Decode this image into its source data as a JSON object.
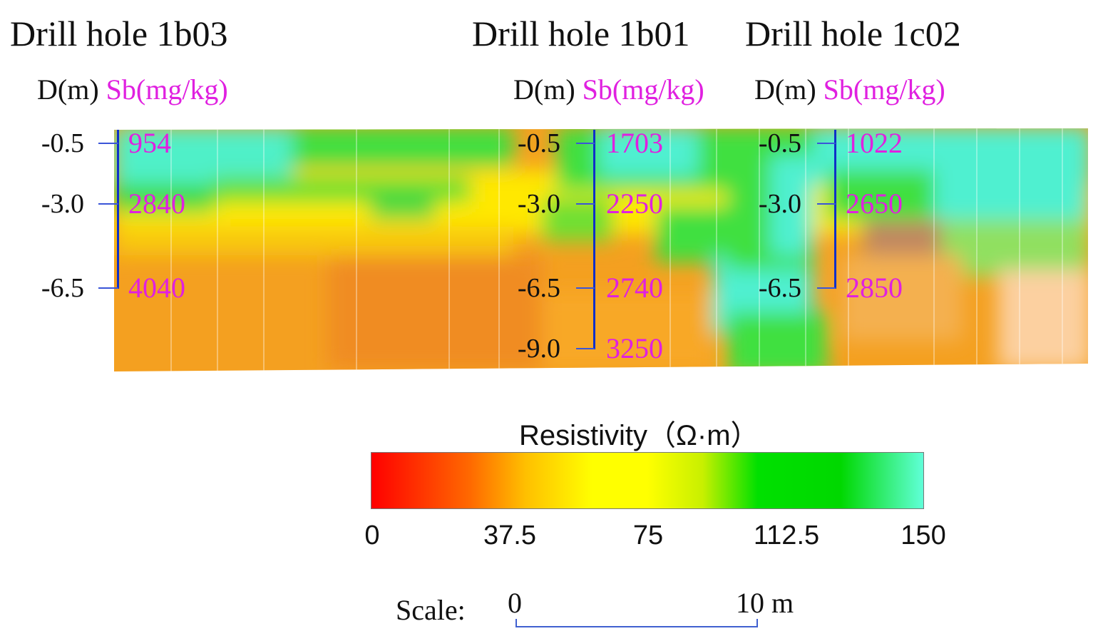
{
  "holes": [
    {
      "title": "Drill hole 1b03",
      "depth_header": "D(m)",
      "sb_header": "Sb(mg/kg)",
      "rows": [
        {
          "depth": "-0.5",
          "sb": "954"
        },
        {
          "depth": "-3.0",
          "sb": "2840"
        },
        {
          "depth": "-6.5",
          "sb": "4040"
        }
      ]
    },
    {
      "title": "Drill hole 1b01",
      "depth_header": "D(m)",
      "sb_header": "Sb(mg/kg)",
      "rows": [
        {
          "depth": "-0.5",
          "sb": "1703"
        },
        {
          "depth": "-3.0",
          "sb": "2250"
        },
        {
          "depth": "-6.5",
          "sb": "2740"
        },
        {
          "depth": "-9.0",
          "sb": "3250"
        }
      ]
    },
    {
      "title": "Drill hole 1c02",
      "depth_header": "D(m)",
      "sb_header": "Sb(mg/kg)",
      "rows": [
        {
          "depth": "-0.5",
          "sb": "1022"
        },
        {
          "depth": "-3.0",
          "sb": "2650"
        },
        {
          "depth": "-6.5",
          "sb": "2850"
        }
      ]
    }
  ],
  "legend": {
    "title": "Resistivity（Ω·m）",
    "ticks": [
      "0",
      "37.5",
      "75",
      "112.5",
      "150"
    ],
    "range": [
      0,
      150
    ],
    "colors": [
      "#ff0000",
      "#ffff00",
      "#00e000",
      "#60ffd8"
    ]
  },
  "scale": {
    "label": "Scale:",
    "start": "0",
    "end": "10 m"
  }
}
